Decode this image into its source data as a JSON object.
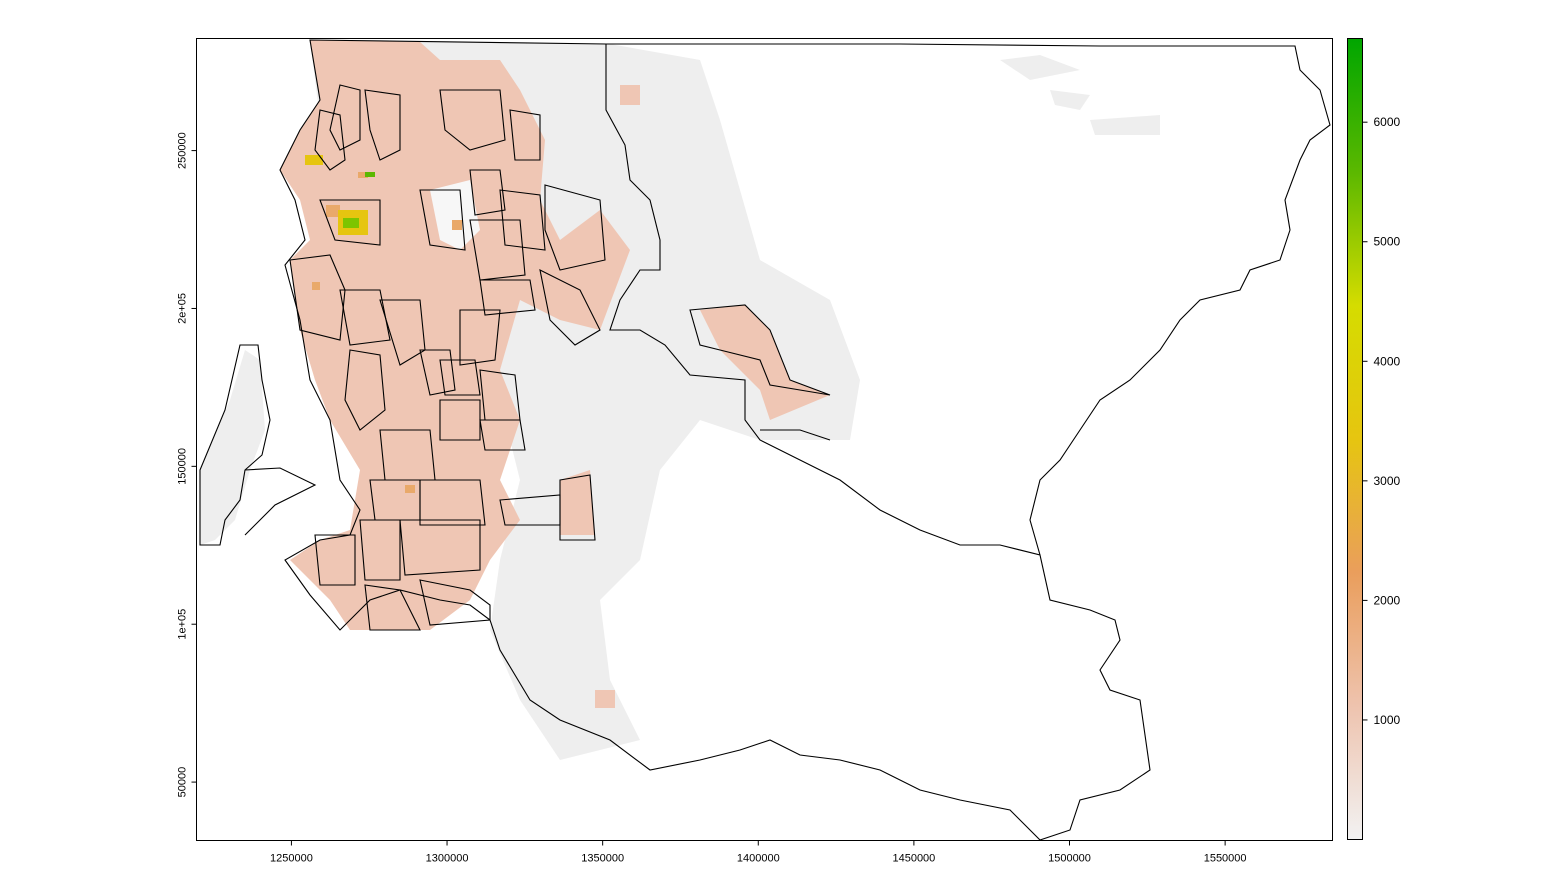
{
  "x_axis": {
    "ticks": [
      "1250000",
      "1300000",
      "1350000",
      "1400000",
      "1450000",
      "1500000",
      "1550000"
    ],
    "range": [
      1219500,
      1584500
    ]
  },
  "y_axis": {
    "ticks": [
      "50000",
      "1e+05",
      "150000",
      "2e+05",
      "250000"
    ],
    "tick_values": [
      50000,
      100000,
      150000,
      200000,
      250000
    ],
    "range": [
      31500,
      285500
    ]
  },
  "legend": {
    "labels": [
      "1000",
      "2000",
      "3000",
      "4000",
      "5000",
      "6000"
    ],
    "values": [
      1000,
      2000,
      3000,
      4000,
      5000,
      6000
    ],
    "min": 0,
    "max": 6700,
    "colors": [
      "#f2f2f2",
      "#eec3ae",
      "#ea9e5c",
      "#e6c510",
      "#d5dc00",
      "#5bb800",
      "#00a600"
    ]
  },
  "colors": {
    "background": "#ffffff",
    "frame": "#000000",
    "low_density": "#eeeeee",
    "mid_density": "#efc6b4",
    "high_density": "#e9a96a",
    "peak_density": "#7dc500",
    "boundary": "#000000"
  }
}
